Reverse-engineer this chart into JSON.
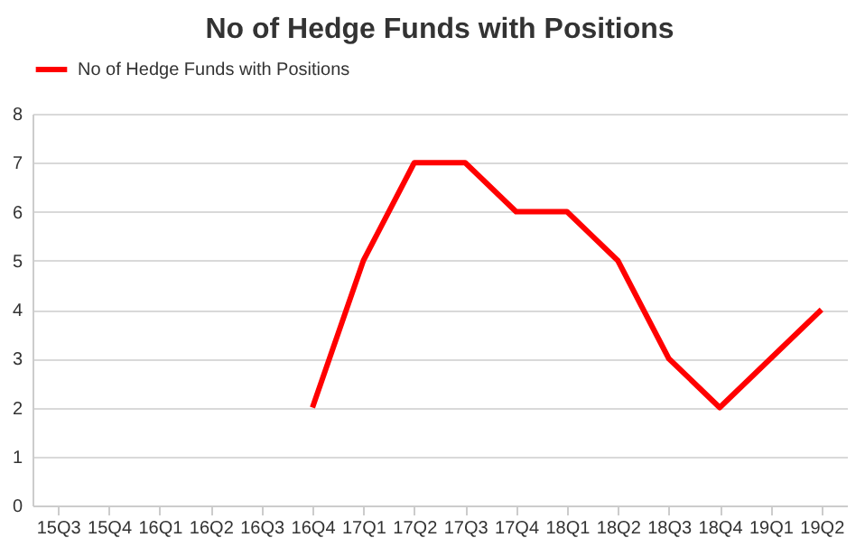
{
  "chart_data": {
    "type": "line",
    "title": "No of Hedge Funds with Positions",
    "categories": [
      "15Q3",
      "15Q4",
      "16Q1",
      "16Q2",
      "16Q3",
      "16Q4",
      "17Q1",
      "17Q2",
      "17Q3",
      "17Q4",
      "18Q1",
      "18Q2",
      "18Q3",
      "18Q4",
      "19Q1",
      "19Q2"
    ],
    "series": [
      {
        "name": "No of Hedge Funds with Positions",
        "color": "#ff0000",
        "values": [
          null,
          null,
          null,
          null,
          null,
          2,
          5,
          7,
          7,
          6,
          6,
          5,
          3,
          2,
          3,
          4
        ]
      }
    ],
    "ylim": [
      0,
      8
    ],
    "yticks": [
      0,
      1,
      2,
      3,
      4,
      5,
      6,
      7,
      8
    ],
    "grid": "y",
    "legend": "top",
    "marker": "none",
    "line_style": "solid"
  }
}
